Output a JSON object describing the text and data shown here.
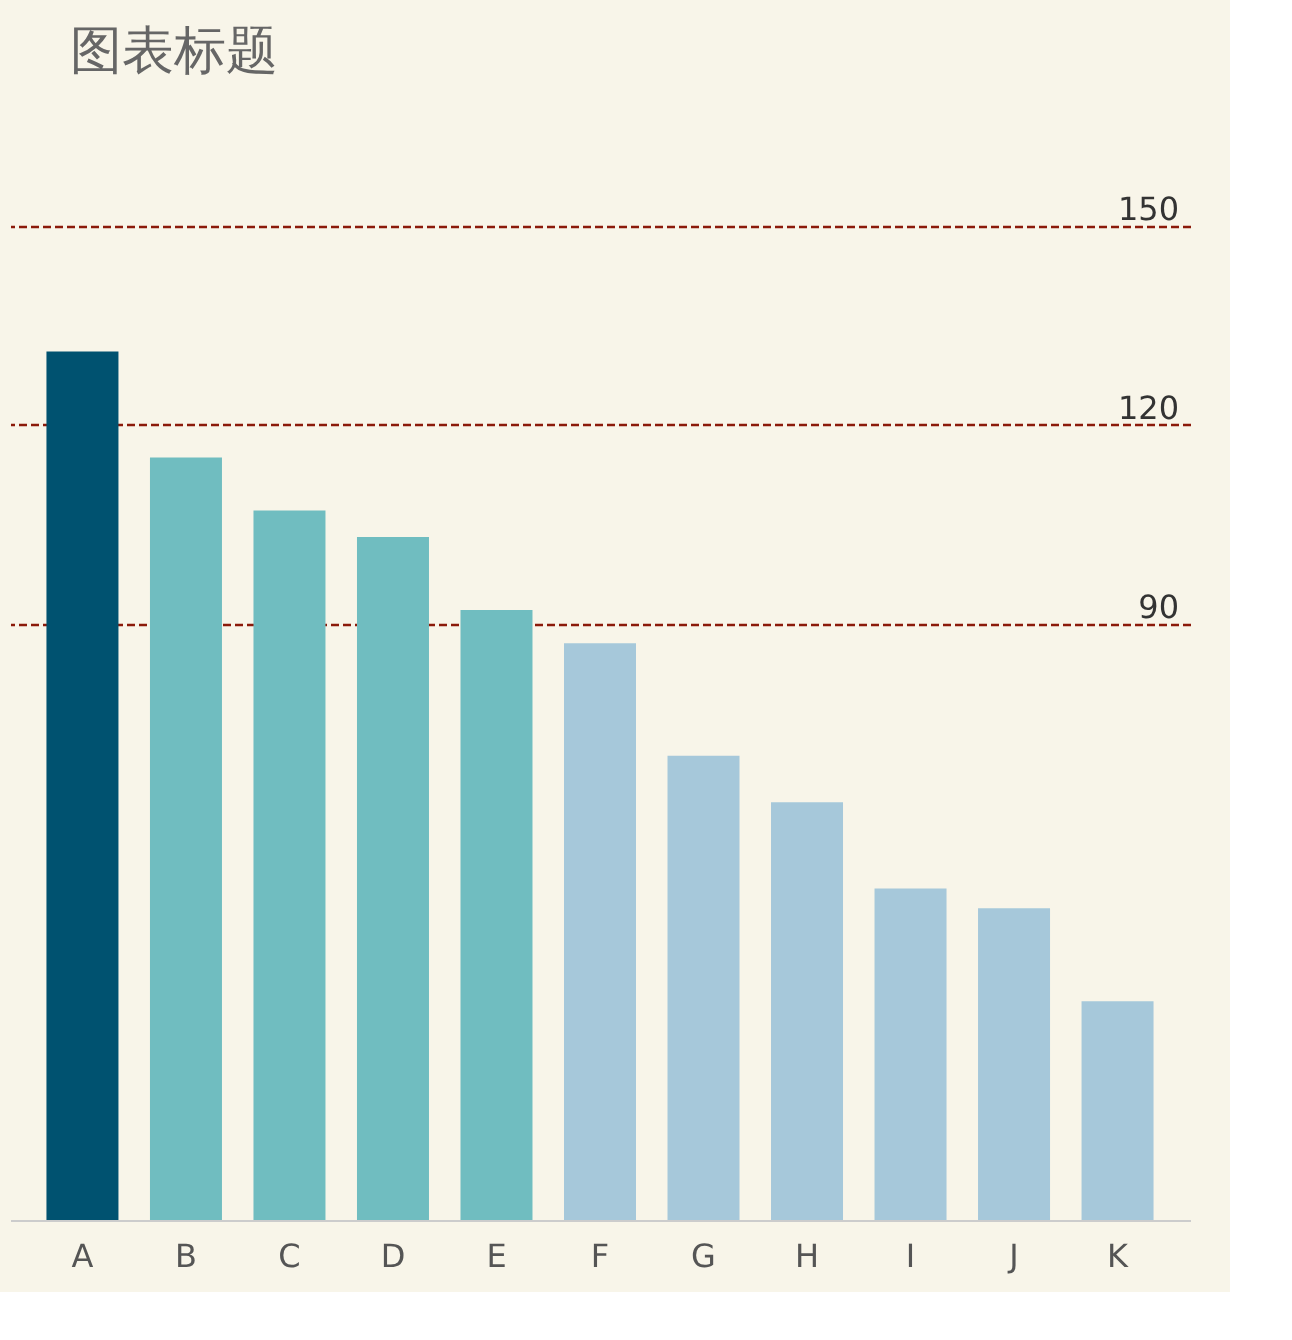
{
  "chart_data": {
    "type": "bar",
    "title": "图表标题",
    "categories": [
      "A",
      "B",
      "C",
      "D",
      "E",
      "F",
      "G",
      "H",
      "I",
      "J",
      "K"
    ],
    "values": [
      131,
      115,
      107,
      103,
      92,
      87,
      70,
      63,
      50,
      47,
      33
    ],
    "colors": [
      "#005270",
      "#70bdc0",
      "#70bdc0",
      "#70bdc0",
      "#70bdc0",
      "#a6c8da",
      "#a6c8da",
      "#a6c8da",
      "#a6c8da",
      "#a6c8da",
      "#a6c8da"
    ],
    "ylim": [
      0,
      184
    ],
    "yticks": [
      90,
      120,
      150
    ],
    "grid": "y"
  }
}
